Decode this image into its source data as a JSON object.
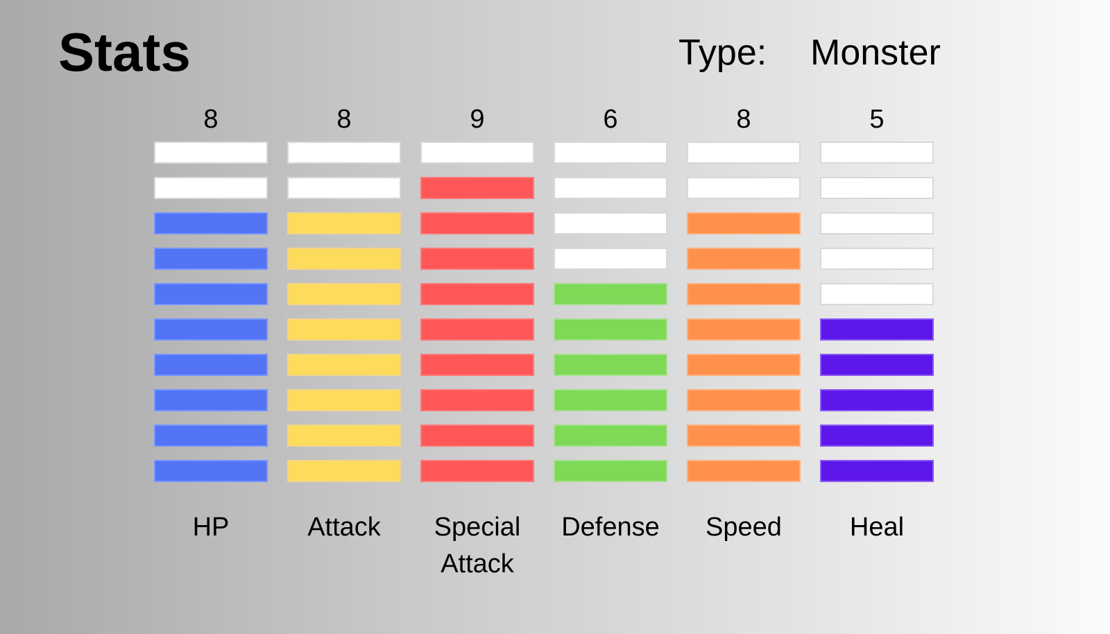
{
  "header": {
    "title": "Stats",
    "type_label": "Type:",
    "type_value": "Monster"
  },
  "max_bars": 10,
  "stats": [
    {
      "name": "HP",
      "value": 8,
      "value_text": "8",
      "color": "#5274f5",
      "border": "#7794ff"
    },
    {
      "name": "Attack",
      "value": 8,
      "value_text": "8",
      "color": "#fddc5b",
      "border": "#f2d48a"
    },
    {
      "name": "Special\nAttack",
      "value": 9,
      "value_text": "9",
      "color": "#ff5757",
      "border": "#ff7878"
    },
    {
      "name": "Defense",
      "value": 6,
      "value_text": "6",
      "color": "#7ed957",
      "border": "#a4e08c"
    },
    {
      "name": "Speed",
      "value": 8,
      "value_text": "8",
      "color": "#ff914d",
      "border": "#ffb07d"
    },
    {
      "name": "Heal",
      "value": 5,
      "value_text": "5",
      "color": "#5e17eb",
      "border": "#8a5af4"
    }
  ]
}
